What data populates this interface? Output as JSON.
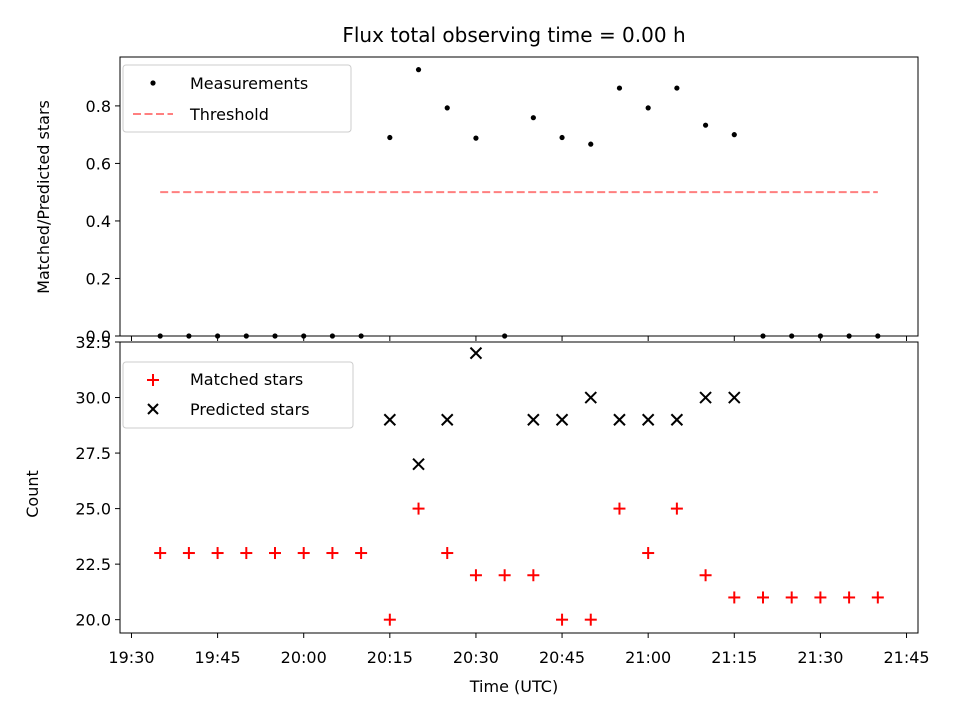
{
  "chart_data": [
    {
      "type": "scatter",
      "title": "Flux total observing time = 0.00 h",
      "ylabel": "Matched/Predicted stars",
      "xlabel": "",
      "ylim": [
        0.0,
        0.97
      ],
      "yticks": [
        0.0,
        0.2,
        0.4,
        0.6,
        0.8
      ],
      "ytick_labels": [
        "0.0",
        "0.2",
        "0.4",
        "0.6",
        "0.8"
      ],
      "legend_position": "top-left",
      "x": [
        "19:35",
        "19:40",
        "19:45",
        "19:50",
        "19:55",
        "20:00",
        "20:05",
        "20:10",
        "20:15",
        "20:20",
        "20:25",
        "20:30",
        "20:35",
        "20:40",
        "20:45",
        "20:50",
        "20:55",
        "21:00",
        "21:05",
        "21:10",
        "21:15",
        "21:20",
        "21:25",
        "21:30",
        "21:35",
        "21:40"
      ],
      "series": [
        {
          "name": "Measurements",
          "marker": "dot",
          "color": "#000000",
          "values": [
            0,
            0,
            0,
            0,
            0,
            0,
            0,
            0,
            0.69,
            0.926,
            0.793,
            0.688,
            0,
            0.759,
            0.69,
            0.667,
            0.862,
            0.793,
            0.862,
            0.733,
            0.7,
            0,
            0,
            0,
            0,
            0
          ]
        },
        {
          "name": "Threshold",
          "marker": "dashed-line",
          "color": "#ff7f7f",
          "x": [
            "19:35",
            "21:40"
          ],
          "values": [
            0.5,
            0.5
          ]
        }
      ]
    },
    {
      "type": "scatter",
      "title": "",
      "ylabel": "Count",
      "xlabel": "Time (UTC)",
      "ylim": [
        19.4,
        32.5
      ],
      "yticks": [
        20.0,
        22.5,
        25.0,
        27.5,
        30.0,
        32.5
      ],
      "ytick_labels": [
        "20.0",
        "22.5",
        "25.0",
        "27.5",
        "30.0",
        "32.5"
      ],
      "xticks": [
        "19:30",
        "19:45",
        "20:00",
        "20:15",
        "20:30",
        "20:45",
        "21:00",
        "21:15",
        "21:30",
        "21:45"
      ],
      "legend_position": "top-left",
      "x": [
        "19:35",
        "19:40",
        "19:45",
        "19:50",
        "19:55",
        "20:00",
        "20:05",
        "20:10",
        "20:15",
        "20:20",
        "20:25",
        "20:30",
        "20:35",
        "20:40",
        "20:45",
        "20:50",
        "20:55",
        "21:00",
        "21:05",
        "21:10",
        "21:15",
        "21:20",
        "21:25",
        "21:30",
        "21:35",
        "21:40"
      ],
      "series": [
        {
          "name": "Matched stars",
          "marker": "plus",
          "color": "#ff0000",
          "values": [
            23,
            23,
            23,
            23,
            23,
            23,
            23,
            23,
            20,
            25,
            23,
            22,
            22,
            22,
            20,
            20,
            25,
            23,
            25,
            22,
            21,
            21,
            21,
            21,
            21,
            21
          ]
        },
        {
          "name": "Predicted stars",
          "marker": "x",
          "color": "#000000",
          "x": [
            "20:15",
            "20:20",
            "20:25",
            "20:30",
            "20:40",
            "20:45",
            "20:50",
            "20:55",
            "21:00",
            "21:05",
            "21:10",
            "21:15"
          ],
          "values": [
            29,
            27,
            29,
            32,
            29,
            29,
            30,
            29,
            29,
            29,
            30,
            30
          ]
        }
      ]
    }
  ]
}
